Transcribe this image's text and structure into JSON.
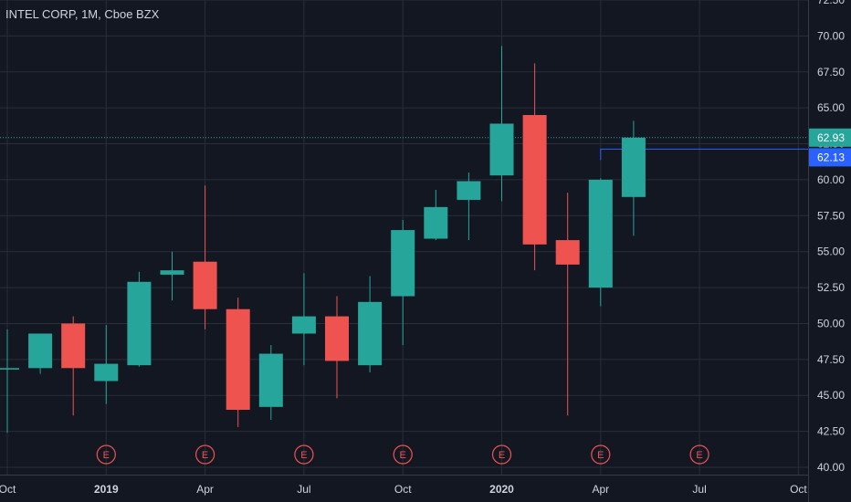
{
  "header": {
    "symbol_title": "INTEL CORP, 1M, Cboe BZX"
  },
  "colors": {
    "background": "#131722",
    "grid": "#2a2e39",
    "up": "#26a69a",
    "down": "#ef5350",
    "text": "#d1d4dc",
    "last_price_line": "#26a69a",
    "last_price_label": "#26a69a",
    "ref_line": "#2962ff",
    "ref_label": "#2962ff"
  },
  "chart_data": {
    "type": "candlestick",
    "title": "INTEL CORP, 1M, Cboe BZX",
    "y_axis": {
      "ylim": [
        40,
        72.5
      ],
      "ticks": [
        "40.00",
        "42.50",
        "45.00",
        "47.50",
        "50.00",
        "52.50",
        "55.00",
        "57.50",
        "60.00",
        "62.50",
        "65.00",
        "67.50",
        "70.00",
        "72.50"
      ],
      "position": "right"
    },
    "x_axis": {
      "ticks": [
        {
          "label": "Oct",
          "index": 0,
          "bold": false
        },
        {
          "label": "2019",
          "index": 3,
          "bold": true
        },
        {
          "label": "Apr",
          "index": 6,
          "bold": false
        },
        {
          "label": "Jul",
          "index": 9,
          "bold": false
        },
        {
          "label": "Oct",
          "index": 12,
          "bold": false
        },
        {
          "label": "2020",
          "index": 15,
          "bold": true
        },
        {
          "label": "Apr",
          "index": 18,
          "bold": false
        },
        {
          "label": "Jul",
          "index": 21,
          "bold": false
        },
        {
          "label": "Oct",
          "index": 24,
          "bold": false
        }
      ]
    },
    "grid": true,
    "candles": [
      {
        "index": 0,
        "open": 46.8,
        "high": 49.6,
        "low": 42.4,
        "close": 46.9
      },
      {
        "index": 1,
        "open": 46.9,
        "high": 49.3,
        "low": 46.5,
        "close": 49.3
      },
      {
        "index": 2,
        "open": 50.0,
        "high": 50.5,
        "low": 43.6,
        "close": 46.9
      },
      {
        "index": 3,
        "open": 46.0,
        "high": 49.9,
        "low": 44.4,
        "close": 47.2
      },
      {
        "index": 4,
        "open": 47.1,
        "high": 53.6,
        "low": 47.0,
        "close": 52.9
      },
      {
        "index": 5,
        "open": 53.4,
        "high": 55.0,
        "low": 51.6,
        "close": 53.7
      },
      {
        "index": 6,
        "open": 54.3,
        "high": 59.6,
        "low": 49.6,
        "close": 51.0
      },
      {
        "index": 7,
        "open": 51.0,
        "high": 51.8,
        "low": 42.8,
        "close": 44.0
      },
      {
        "index": 8,
        "open": 44.2,
        "high": 48.5,
        "low": 43.3,
        "close": 47.9
      },
      {
        "index": 9,
        "open": 49.3,
        "high": 53.5,
        "low": 47.1,
        "close": 50.5
      },
      {
        "index": 10,
        "open": 50.5,
        "high": 51.9,
        "low": 44.8,
        "close": 47.4
      },
      {
        "index": 11,
        "open": 47.1,
        "high": 53.3,
        "low": 46.6,
        "close": 51.5
      },
      {
        "index": 12,
        "open": 51.9,
        "high": 57.2,
        "low": 48.5,
        "close": 56.5
      },
      {
        "index": 13,
        "open": 55.9,
        "high": 59.3,
        "low": 55.8,
        "close": 58.1
      },
      {
        "index": 14,
        "open": 58.6,
        "high": 60.5,
        "low": 55.8,
        "close": 59.9
      },
      {
        "index": 15,
        "open": 60.3,
        "high": 69.3,
        "low": 58.5,
        "close": 63.9
      },
      {
        "index": 16,
        "open": 64.5,
        "high": 68.1,
        "low": 53.7,
        "close": 55.5
      },
      {
        "index": 17,
        "open": 55.8,
        "high": 59.1,
        "low": 43.6,
        "close": 54.1
      },
      {
        "index": 18,
        "open": 52.5,
        "high": 60.1,
        "low": 51.2,
        "close": 60.0
      },
      {
        "index": 19,
        "open": 58.8,
        "high": 64.1,
        "low": 56.1,
        "close": 62.93
      }
    ],
    "earnings_markers": [
      {
        "index": 3,
        "label": "E"
      },
      {
        "index": 6,
        "label": "E"
      },
      {
        "index": 9,
        "label": "E"
      },
      {
        "index": 12,
        "label": "E"
      },
      {
        "index": 15,
        "label": "E"
      },
      {
        "index": 18,
        "label": "E"
      },
      {
        "index": 21,
        "label": "E"
      }
    ],
    "last_price": {
      "value": 62.93,
      "label": "62.93"
    },
    "reference_line": {
      "value": 62.13,
      "label": "62.13",
      "start_index": 18
    }
  }
}
